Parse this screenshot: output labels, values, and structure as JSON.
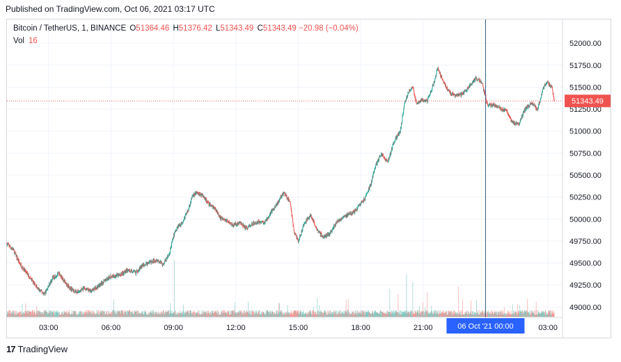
{
  "published": "Published on TradingView.com, Oct 06, 2021 03:17 UTC",
  "legend": {
    "symbol": "Bitcoin / TetherUS, 1, BINANCE",
    "o_label": "O",
    "o_value": "51364.46",
    "h_label": "H",
    "h_value": "51376.42",
    "l_label": "L",
    "l_value": "51343.49",
    "c_label": "C",
    "c_value": "51343.49",
    "change": "−20.98 (−0.04%)",
    "vol_label": "Vol",
    "vol_value": "16"
  },
  "footer": {
    "brand": "TradingView",
    "logo": "17"
  },
  "colors": {
    "up": "#26a69a",
    "down": "#ef5350",
    "crosshair": "#2a5b82",
    "time_highlight": "#2962ff"
  },
  "chart_data": {
    "type": "candlestick",
    "title": "Bitcoin / TetherUS, 1, BINANCE",
    "x_tick_labels": [
      "03:00",
      "06:00",
      "09:00",
      "12:00",
      "15:00",
      "18:00",
      "21:00",
      "03:00"
    ],
    "x_tick_hours": [
      3,
      6,
      9,
      12,
      15,
      18,
      21,
      27
    ],
    "y_tick_labels": [
      "52000.00",
      "51750.00",
      "51500.00",
      "51250.00",
      "51000.00",
      "50750.00",
      "50500.00",
      "50250.00",
      "50000.00",
      "49750.00",
      "49500.00",
      "49250.00",
      "49000.00"
    ],
    "y_ticks": [
      52000,
      51750,
      51500,
      51250,
      51000,
      50750,
      50500,
      50250,
      50000,
      49750,
      49500,
      49250,
      49000
    ],
    "x_range_hours": [
      1,
      27.7
    ],
    "y_range": [
      48880,
      52270
    ],
    "last_price": 51343.49,
    "last_price_label": "51343.49",
    "crosshair_label": "06 Oct '21   00:00",
    "crosshair_hour": 24,
    "price_path": [
      [
        1.0,
        49720
      ],
      [
        1.3,
        49650
      ],
      [
        1.6,
        49500
      ],
      [
        1.9,
        49400
      ],
      [
        2.2,
        49300
      ],
      [
        2.5,
        49200
      ],
      [
        2.8,
        49150
      ],
      [
        3.2,
        49330
      ],
      [
        3.5,
        49380
      ],
      [
        3.8,
        49280
      ],
      [
        4.1,
        49200
      ],
      [
        4.4,
        49170
      ],
      [
        4.7,
        49210
      ],
      [
        5.0,
        49180
      ],
      [
        5.3,
        49220
      ],
      [
        5.7,
        49300
      ],
      [
        6.0,
        49350
      ],
      [
        6.4,
        49360
      ],
      [
        6.8,
        49420
      ],
      [
        7.2,
        49390
      ],
      [
        7.5,
        49470
      ],
      [
        7.9,
        49510
      ],
      [
        8.2,
        49540
      ],
      [
        8.5,
        49480
      ],
      [
        8.8,
        49600
      ],
      [
        9.0,
        49800
      ],
      [
        9.2,
        49920
      ],
      [
        9.4,
        49950
      ],
      [
        9.7,
        50100
      ],
      [
        9.9,
        50250
      ],
      [
        10.1,
        50300
      ],
      [
        10.4,
        50270
      ],
      [
        10.7,
        50170
      ],
      [
        11.0,
        50120
      ],
      [
        11.3,
        50000
      ],
      [
        11.6,
        49980
      ],
      [
        11.9,
        49930
      ],
      [
        12.2,
        49960
      ],
      [
        12.5,
        49890
      ],
      [
        12.8,
        49950
      ],
      [
        13.1,
        49970
      ],
      [
        13.4,
        49960
      ],
      [
        13.7,
        50080
      ],
      [
        14.0,
        50180
      ],
      [
        14.3,
        50300
      ],
      [
        14.6,
        50200
      ],
      [
        14.8,
        49850
      ],
      [
        15.0,
        49750
      ],
      [
        15.3,
        49950
      ],
      [
        15.6,
        50050
      ],
      [
        15.9,
        49870
      ],
      [
        16.2,
        49800
      ],
      [
        16.5,
        49830
      ],
      [
        16.8,
        49950
      ],
      [
        17.1,
        50020
      ],
      [
        17.4,
        50050
      ],
      [
        17.7,
        50080
      ],
      [
        17.9,
        50150
      ],
      [
        18.2,
        50230
      ],
      [
        18.5,
        50400
      ],
      [
        18.7,
        50600
      ],
      [
        19.0,
        50740
      ],
      [
        19.3,
        50650
      ],
      [
        19.6,
        50880
      ],
      [
        19.9,
        51000
      ],
      [
        20.1,
        51300
      ],
      [
        20.3,
        51450
      ],
      [
        20.5,
        51500
      ],
      [
        20.7,
        51300
      ],
      [
        20.9,
        51360
      ],
      [
        21.2,
        51350
      ],
      [
        21.5,
        51530
      ],
      [
        21.7,
        51720
      ],
      [
        22.0,
        51550
      ],
      [
        22.3,
        51430
      ],
      [
        22.6,
        51400
      ],
      [
        22.9,
        51420
      ],
      [
        23.2,
        51500
      ],
      [
        23.5,
        51600
      ],
      [
        23.8,
        51560
      ],
      [
        24.1,
        51300
      ],
      [
        24.4,
        51300
      ],
      [
        24.7,
        51260
      ],
      [
        25.0,
        51230
      ],
      [
        25.3,
        51100
      ],
      [
        25.6,
        51080
      ],
      [
        25.9,
        51250
      ],
      [
        26.2,
        51320
      ],
      [
        26.5,
        51250
      ],
      [
        26.8,
        51500
      ],
      [
        27.0,
        51550
      ],
      [
        27.2,
        51500
      ],
      [
        27.3,
        51343
      ]
    ],
    "volume_range": [
      0,
      160
    ],
    "volume_spikes": [
      [
        9.05,
        130
      ],
      [
        19.4,
        65
      ],
      [
        19.8,
        52
      ],
      [
        20.2,
        98
      ],
      [
        20.5,
        80
      ],
      [
        21.2,
        56
      ],
      [
        22.7,
        70
      ],
      [
        25.3,
        30
      ],
      [
        26.2,
        16
      ]
    ]
  }
}
